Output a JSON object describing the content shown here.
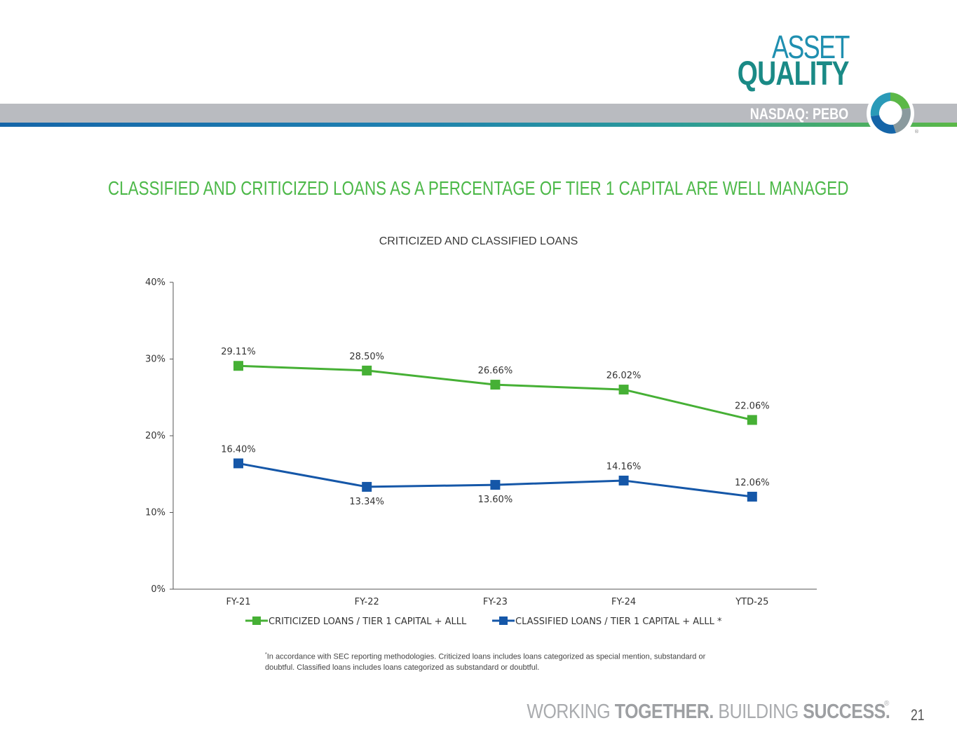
{
  "header": {
    "title_line1": "ASSET",
    "title_line2": "QUALITY",
    "ticker": "NASDAQ: PEBO"
  },
  "headline": "CLASSIFIED AND CRITICIZED LOANS AS A PERCENTAGE OF TIER 1 CAPITAL ARE WELL MANAGED",
  "colors": {
    "green": "#4cb848",
    "blue": "#1557a8",
    "teal": "#1a8a86"
  },
  "chart_data": {
    "type": "line",
    "title": "CRITICIZED AND CLASSIFIED LOANS",
    "categories": [
      "FY-21",
      "FY-22",
      "FY-23",
      "FY-24",
      "YTD-25"
    ],
    "ylim": [
      0,
      40
    ],
    "yticks": [
      0,
      10,
      20,
      30,
      40
    ],
    "ytick_labels": [
      "0%",
      "10%",
      "20%",
      "30%",
      "40%"
    ],
    "xlabel": "",
    "ylabel": "",
    "legend_position": "bottom",
    "series": [
      {
        "name": "CRITICIZED LOANS / TIER 1 CAPITAL + ALLL",
        "color": "#46b035",
        "values": [
          29.11,
          28.5,
          26.66,
          26.02,
          22.06
        ],
        "labels": [
          "29.11%",
          "28.50%",
          "26.66%",
          "26.02%",
          "22.06%"
        ]
      },
      {
        "name": "CLASSIFIED LOANS / TIER 1 CAPITAL + ALLL *",
        "color": "#1557a8",
        "values": [
          16.4,
          13.34,
          13.6,
          14.16,
          12.06
        ],
        "labels": [
          "16.40%",
          "13.34%",
          "13.60%",
          "14.16%",
          "12.06%"
        ]
      }
    ]
  },
  "footnote": {
    "marker": "*",
    "text": "In accordance with SEC reporting methodologies. Criticized loans includes loans categorized as special mention, substandard or doubtful. Classified loans includes loans categorized as substandard or doubtful."
  },
  "footer": {
    "tag_part1": "WORKING ",
    "tag_part2": "TOGETHER.",
    "tag_part3": " BUILDING ",
    "tag_part4": "SUCCESS.",
    "registered": "®",
    "page_number": "21"
  }
}
